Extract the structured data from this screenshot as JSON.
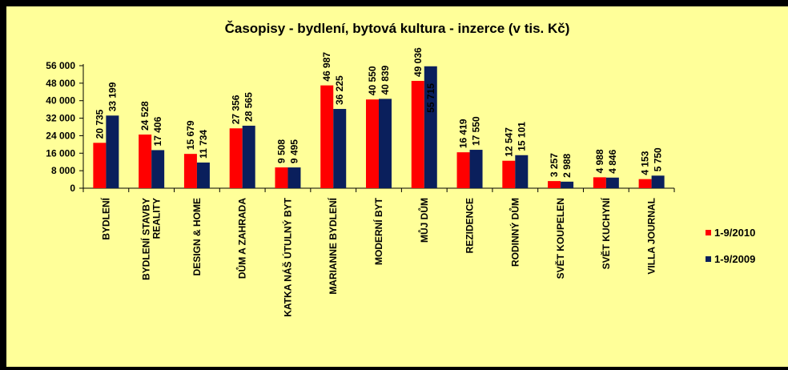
{
  "chart_data": {
    "type": "bar",
    "title": "Časopisy - bydlení, bytová kultura - inzerce (v tis. Kč)",
    "xlabel": "",
    "ylabel": "",
    "ylim": [
      0,
      56000
    ],
    "yticks": [
      0,
      8000,
      16000,
      24000,
      32000,
      40000,
      48000,
      56000
    ],
    "ytick_labels": [
      "0",
      "8 000",
      "16 000",
      "24 000",
      "32 000",
      "40 000",
      "48 000",
      "56 000"
    ],
    "grid": false,
    "legend_position": "right",
    "categories": [
      [
        "BYDLENÍ"
      ],
      [
        "BYDLENÍ STAVBY",
        "REALITY"
      ],
      [
        "DESIGN & HOME"
      ],
      [
        "DŮM A ZAHRADA"
      ],
      [
        "KATKA NÁŠ ÚTULNÝ BYT"
      ],
      [
        "MARIANNE BYDLENÍ"
      ],
      [
        "MODERNÍ BYT"
      ],
      [
        "MŮJ DŮM"
      ],
      [
        "REZIDENCE"
      ],
      [
        "RODINNÝ DŮM"
      ],
      [
        "SVĚT KOUPELEN"
      ],
      [
        "SVĚT KUCHYNÍ"
      ],
      [
        "VILLA JOURNAL"
      ]
    ],
    "series": [
      {
        "name": "1-9/2010",
        "color": "#ff0000",
        "values": [
          20735,
          24528,
          15679,
          27356,
          9508,
          46987,
          40550,
          49036,
          16419,
          12547,
          3257,
          4988,
          4153
        ],
        "labels": [
          "20 735",
          "24 528",
          "15 679",
          "27 356",
          "9 508",
          "46 987",
          "40 550",
          "49 036",
          "16 419",
          "12 547",
          "3 257",
          "4 988",
          "4 153"
        ]
      },
      {
        "name": "1-9/2009",
        "color": "#0a1f5c",
        "values": [
          33199,
          17406,
          11734,
          28565,
          9495,
          36225,
          40839,
          55715,
          17550,
          15101,
          2988,
          4846,
          5750
        ],
        "labels": [
          "33 199",
          "17 406",
          "11 734",
          "28 565",
          "9 495",
          "36 225",
          "40 839",
          "55 715",
          "17 550",
          "15 101",
          "2 988",
          "4 846",
          "5 750"
        ]
      }
    ],
    "colors": {
      "background": "#ffff99",
      "frame": "#000000"
    }
  }
}
